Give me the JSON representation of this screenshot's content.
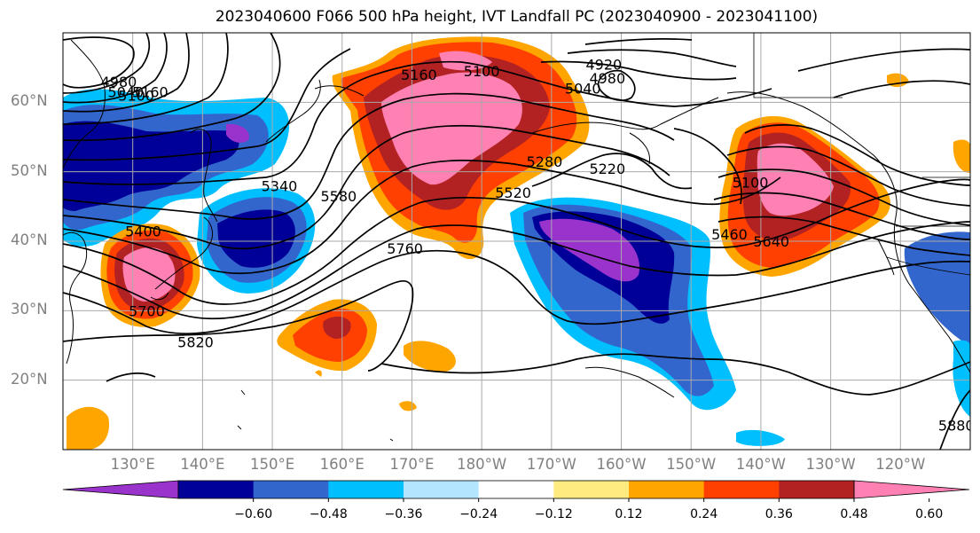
{
  "title": "2023040600 F066 500 hPa height, IVT Landfall PC (2023040900 - 2023041100)",
  "map": {
    "extent": {
      "lon_min": 120,
      "lon_max": 250,
      "lat_min": 10,
      "lat_max": 70
    },
    "lat_ticks": [
      {
        "lat": 60,
        "label": "60°N"
      },
      {
        "lat": 50,
        "label": "50°N"
      },
      {
        "lat": 40,
        "label": "40°N"
      },
      {
        "lat": 30,
        "label": "30°N"
      },
      {
        "lat": 20,
        "label": "20°N"
      }
    ],
    "lon_ticks": [
      {
        "lon": 130,
        "label": "130°E"
      },
      {
        "lon": 140,
        "label": "140°E"
      },
      {
        "lon": 150,
        "label": "150°E"
      },
      {
        "lon": 160,
        "label": "160°E"
      },
      {
        "lon": 170,
        "label": "170°E"
      },
      {
        "lon": 180,
        "label": "180°W"
      },
      {
        "lon": 190,
        "label": "170°W"
      },
      {
        "lon": 200,
        "label": "160°W"
      },
      {
        "lon": 210,
        "label": "150°W"
      },
      {
        "lon": 220,
        "label": "140°W"
      },
      {
        "lon": 230,
        "label": "130°W"
      },
      {
        "lon": 240,
        "label": "120°W"
      }
    ],
    "gridlines": true,
    "tick_label_color": "#808080",
    "height_contour_labels": [
      {
        "text": "4980",
        "lon": 128,
        "lat": 63
      },
      {
        "text": "5040",
        "lon": 129,
        "lat": 61.5
      },
      {
        "text": "5100",
        "lon": 130.5,
        "lat": 61
      },
      {
        "text": "5160",
        "lon": 132.5,
        "lat": 61.5
      },
      {
        "text": "5160",
        "lon": 171,
        "lat": 64
      },
      {
        "text": "5100",
        "lon": 180,
        "lat": 64.5
      },
      {
        "text": "4920",
        "lon": 197.5,
        "lat": 65.5
      },
      {
        "text": "4980",
        "lon": 198,
        "lat": 63.5
      },
      {
        "text": "5040",
        "lon": 194.5,
        "lat": 62
      },
      {
        "text": "5280",
        "lon": 189,
        "lat": 51.5
      },
      {
        "text": "5220",
        "lon": 198,
        "lat": 50.5
      },
      {
        "text": "5520",
        "lon": 184.5,
        "lat": 47
      },
      {
        "text": "5340",
        "lon": 151,
        "lat": 48
      },
      {
        "text": "5580",
        "lon": 159.5,
        "lat": 46.5
      },
      {
        "text": "5400",
        "lon": 131.5,
        "lat": 41.5
      },
      {
        "text": "5760",
        "lon": 169,
        "lat": 39
      },
      {
        "text": "5700",
        "lon": 132,
        "lat": 30
      },
      {
        "text": "5820",
        "lon": 139,
        "lat": 25.5
      },
      {
        "text": "5100",
        "lon": 218.5,
        "lat": 48.5
      },
      {
        "text": "5460",
        "lon": 215.5,
        "lat": 41
      },
      {
        "text": "5640",
        "lon": 221.5,
        "lat": 40
      },
      {
        "text": "5880",
        "lon": 248,
        "lat": 13.5
      }
    ]
  },
  "colorbar": {
    "colors": [
      "#9933cc",
      "#000099",
      "#3366cc",
      "#00bfff",
      "#b3e5ff",
      "#ffffff",
      "#ffeb80",
      "#ffa500",
      "#ff4000",
      "#b22222",
      "#ff80b3"
    ],
    "tick_labels": [
      "−0.60",
      "−0.48",
      "−0.36",
      "−0.24",
      "−0.12",
      "0.12",
      "0.24",
      "0.36",
      "0.48",
      "0.60"
    ]
  },
  "colors": {
    "ivt_positive_1": "#ffa500",
    "ivt_positive_2": "#ff4000",
    "ivt_positive_3": "#b22222",
    "ivt_positive_4": "#ff80b3",
    "ivt_negative_1": "#00bfff",
    "ivt_negative_2": "#3366cc",
    "ivt_negative_3": "#000099",
    "ivt_negative_4": "#9933cc"
  }
}
